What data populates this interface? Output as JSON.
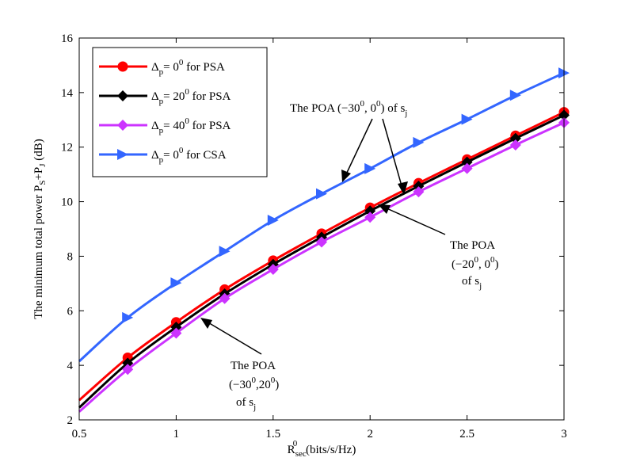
{
  "chart_data": {
    "type": "line",
    "xlabel": {
      "main": "R",
      "sup": "0",
      "sub": "sec",
      "rest": " (bits/s/Hz)"
    },
    "ylabel": {
      "a": "The minimum total power P",
      "b": "S",
      "c": "+P",
      "d": "J",
      "e": " (dB)"
    },
    "xlim": [
      0.5,
      3
    ],
    "ylim": [
      2,
      16
    ],
    "xticks": [
      {
        "v": 0.5,
        "label": "0.5"
      },
      {
        "v": 1,
        "label": "1"
      },
      {
        "v": 1.5,
        "label": "1.5"
      },
      {
        "v": 2,
        "label": "2"
      },
      {
        "v": 2.5,
        "label": "2.5"
      },
      {
        "v": 3,
        "label": "3"
      }
    ],
    "yticks": [
      {
        "v": 2,
        "label": "2"
      },
      {
        "v": 4,
        "label": "4"
      },
      {
        "v": 6,
        "label": "6"
      },
      {
        "v": 8,
        "label": "8"
      },
      {
        "v": 10,
        "label": "10"
      },
      {
        "v": 12,
        "label": "12"
      },
      {
        "v": 14,
        "label": "14"
      },
      {
        "v": 16,
        "label": "16"
      }
    ],
    "x": [
      0.5,
      0.75,
      1,
      1.25,
      1.5,
      1.75,
      2,
      2.25,
      2.5,
      2.75,
      3
    ],
    "series": [
      {
        "name": "psa0",
        "color": "#ff0000",
        "marker": "circle",
        "legend": {
          "delta": "Δ",
          "sub": "p",
          "eq": "= 0",
          "sup": "0",
          "tail": " for  PSA"
        },
        "values": [
          2.72,
          4.28,
          5.58,
          6.78,
          7.84,
          8.83,
          9.78,
          10.68,
          11.55,
          12.42,
          13.28
        ]
      },
      {
        "name": "psa20",
        "color": "#000000",
        "marker": "diamond",
        "legend": {
          "delta": "Δ",
          "sub": "p",
          "eq": "= 20",
          "sup": "0",
          "tail": " for PSA"
        },
        "values": [
          2.45,
          4.08,
          5.4,
          6.62,
          7.7,
          8.7,
          9.66,
          10.57,
          11.45,
          12.32,
          13.17
        ]
      },
      {
        "name": "psa40",
        "color": "#cc33ff",
        "marker": "diamond",
        "legend": {
          "delta": "Δ",
          "sub": "p",
          "eq": "= 40",
          "sup": "0",
          "tail": " for PSA"
        },
        "values": [
          2.3,
          3.85,
          5.18,
          6.45,
          7.52,
          8.52,
          9.43,
          10.36,
          11.22,
          12.08,
          12.9
        ]
      },
      {
        "name": "csa0",
        "color": "#3366ff",
        "marker": "triangle",
        "legend": {
          "delta": "Δ",
          "sub": "p",
          "eq": "= 0",
          "sup": "0",
          "tail": " for CSA"
        },
        "values": [
          4.15,
          5.75,
          7.02,
          8.18,
          9.32,
          10.29,
          11.21,
          12.17,
          13.02,
          13.9,
          14.72
        ]
      }
    ],
    "annotations": {
      "top": {
        "text": "The POA (−30",
        "sup1": "0",
        "mid": ", 0",
        "sup2": "0",
        "close": ") of s",
        "sub": "j"
      },
      "right": {
        "l1": "The POA",
        "l2a": "(−20",
        "l2sup1": "0",
        "l2b": ", 0",
        "l2sup2": "0",
        "l2c": ")",
        "l3a": "of s",
        "l3sub": "j"
      },
      "bottom": {
        "l1": "The POA",
        "l2a": "(−30",
        "l2sup1": "0",
        "l2b": ",20",
        "l2sup2": "0",
        "l2c": ")",
        "l3a": "of s",
        "l3sub": "j"
      }
    }
  }
}
